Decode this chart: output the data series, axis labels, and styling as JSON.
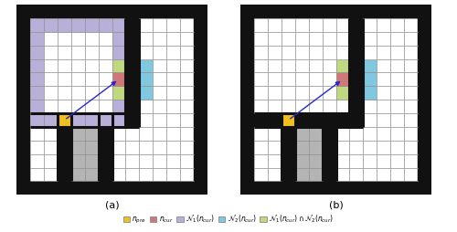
{
  "fig_width": 5.0,
  "fig_height": 2.54,
  "dpi": 100,
  "color_wall": "#111111",
  "color_white": "#ffffff",
  "color_border_bg": "#dddddd",
  "color_n_pre": "#f0c020",
  "color_n_cur": "#d07878",
  "color_N1": "#b8b0d8",
  "color_N2": "#80c8e0",
  "color_N1_N2": "#c0d880",
  "color_gray_obstacle": "#b4b4b4",
  "color_arrow": "#2828cc",
  "color_grid_line": "#888888",
  "label_a": "(a)",
  "label_b": "(b)",
  "N": 14,
  "n_pre": [
    6,
    3
  ],
  "n_cur": [
    4,
    9
  ],
  "legend_items": [
    {
      "label": "$n_{pre}$",
      "color": "#f0c020"
    },
    {
      "label": "$n_{cur}$",
      "color": "#d07878"
    },
    {
      "label": "$\\mathcal{N}_1(n_{cur})$",
      "color": "#b8b0d8"
    },
    {
      "label": "$\\mathcal{N}_2(n_{cur})$",
      "color": "#80c8e0"
    },
    {
      "label": "$\\mathcal{N}_1(n_{cur}) \\cap \\mathcal{N}_2(n_{cur})$",
      "color": "#c0d880"
    }
  ]
}
